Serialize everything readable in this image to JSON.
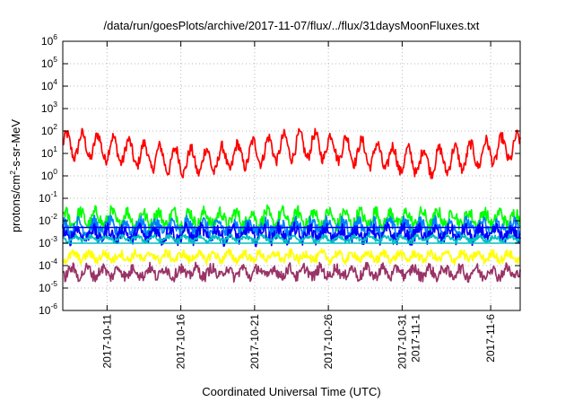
{
  "chart_data": {
    "type": "line",
    "title": "/data/run/goesPlots/archive/2017-11-07/flux/../flux/31daysMoonFluxes.txt",
    "xlabel": "Coordinated Universal Time (UTC)",
    "ylabel": {
      "base": "protons/cm",
      "sup": "2",
      "rest": "-s-sr-MeV"
    },
    "yscale": "log",
    "ylim_exp": [
      -6,
      6
    ],
    "y_ticks": [
      {
        "base": "10",
        "exp": "-6",
        "v": -6
      },
      {
        "base": "10",
        "exp": "-5",
        "v": -5
      },
      {
        "base": "10",
        "exp": "-4",
        "v": -4
      },
      {
        "base": "10",
        "exp": "-3",
        "v": -3
      },
      {
        "base": "10",
        "exp": "-2",
        "v": -2
      },
      {
        "base": "10",
        "exp": "-1",
        "v": -1
      },
      {
        "base": "10",
        "exp": "0",
        "v": 0
      },
      {
        "base": "10",
        "exp": "1",
        "v": 1
      },
      {
        "base": "10",
        "exp": "2",
        "v": 2
      },
      {
        "base": "10",
        "exp": "3",
        "v": 3
      },
      {
        "base": "10",
        "exp": "4",
        "v": 4
      },
      {
        "base": "10",
        "exp": "5",
        "v": 5
      },
      {
        "base": "10",
        "exp": "6",
        "v": 6
      }
    ],
    "xlim": [
      "2017-10-08",
      "2017-11-08"
    ],
    "x_ticks": [
      {
        "label": [
          "2017-10-11"
        ],
        "x": "2017-10-11"
      },
      {
        "label": [
          "2017-10-16"
        ],
        "x": "2017-10-16"
      },
      {
        "label": [
          "2017-10-21"
        ],
        "x": "2017-10-21"
      },
      {
        "label": [
          "2017-10-26"
        ],
        "x": "2017-10-26"
      },
      {
        "label": [
          "2017-10-31",
          "2017-11-1"
        ],
        "x": "2017-10-31"
      },
      {
        "label": [
          "2017-11-6"
        ],
        "x": "2017-11-06"
      }
    ],
    "grid": true,
    "series": [
      {
        "color": "#ff0000",
        "base_exp": 1.0,
        "amp": 0.55,
        "noise": 0.25
      },
      {
        "color": "#00ff00",
        "base_exp": -1.9,
        "amp": 0.3,
        "noise": 0.3
      },
      {
        "color": "#0080ff",
        "base_exp": -2.3,
        "amp": 0.25,
        "noise": 0.3
      },
      {
        "color": "#0000ff",
        "base_exp": -2.6,
        "amp": 0.25,
        "noise": 0.3
      },
      {
        "color": "#00c0c0",
        "base_exp": -2.8,
        "amp": 0.1,
        "noise": 0.1
      },
      {
        "color": "#ffff00",
        "base_exp": -3.6,
        "amp": 0.15,
        "noise": 0.2
      },
      {
        "color": "#993366",
        "base_exp": -4.3,
        "amp": 0.2,
        "noise": 0.25
      }
    ],
    "reference_lines": [
      {
        "color": "#00c0c0",
        "y_exp": -3.0
      },
      {
        "color": "#0000ff",
        "y_exp": -2.3
      }
    ]
  }
}
